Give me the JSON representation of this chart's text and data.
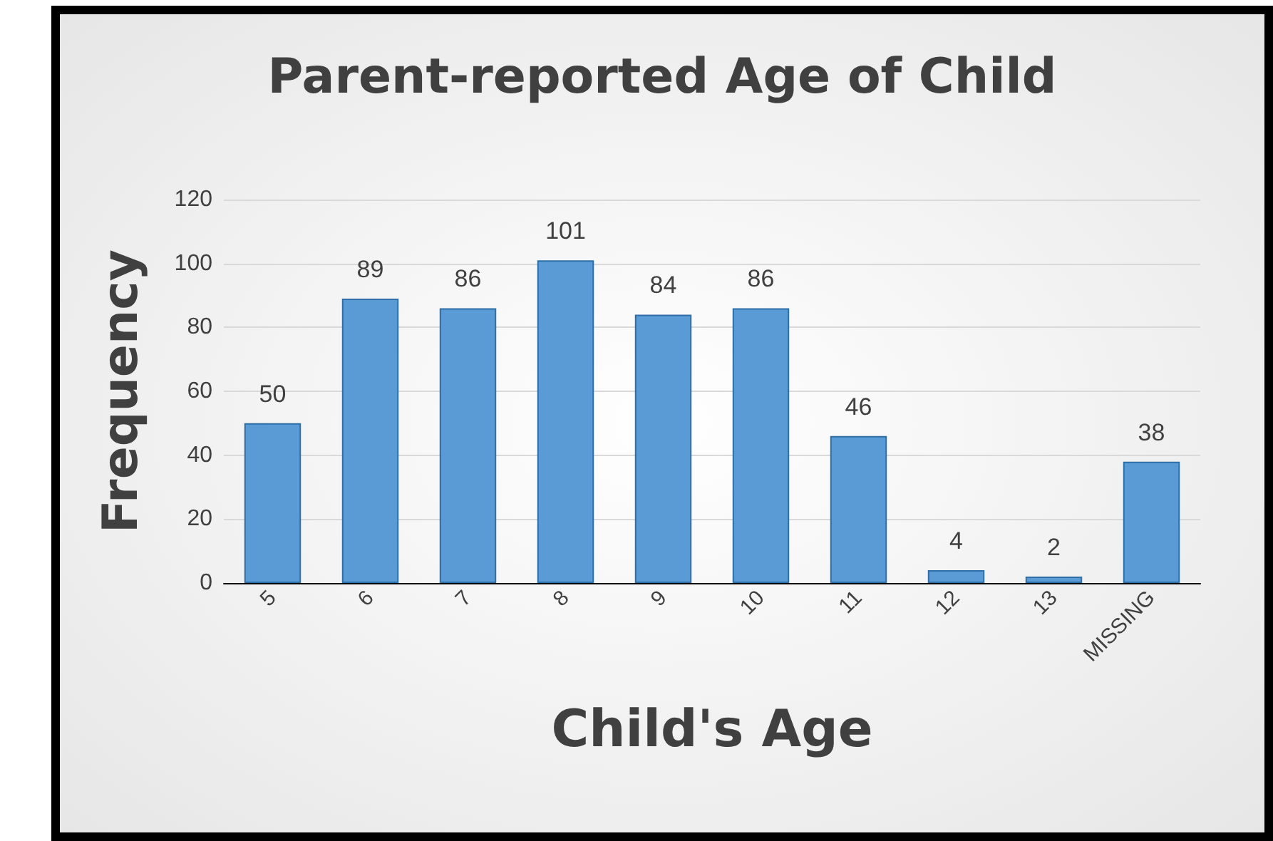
{
  "chart_data": {
    "type": "bar",
    "title": "Parent-reported Age of Child",
    "xlabel": "Child's Age",
    "ylabel": "Frequency",
    "categories": [
      "5",
      "6",
      "7",
      "8",
      "9",
      "10",
      "11",
      "12",
      "13",
      "MISSING"
    ],
    "values": [
      50,
      89,
      86,
      101,
      84,
      86,
      46,
      4,
      2,
      38
    ],
    "color": "#5b9bd5",
    "ylim": [
      0,
      120
    ],
    "yticks": [
      0,
      20,
      40,
      60,
      80,
      100,
      120
    ],
    "grid": "y",
    "data_labels": true
  }
}
